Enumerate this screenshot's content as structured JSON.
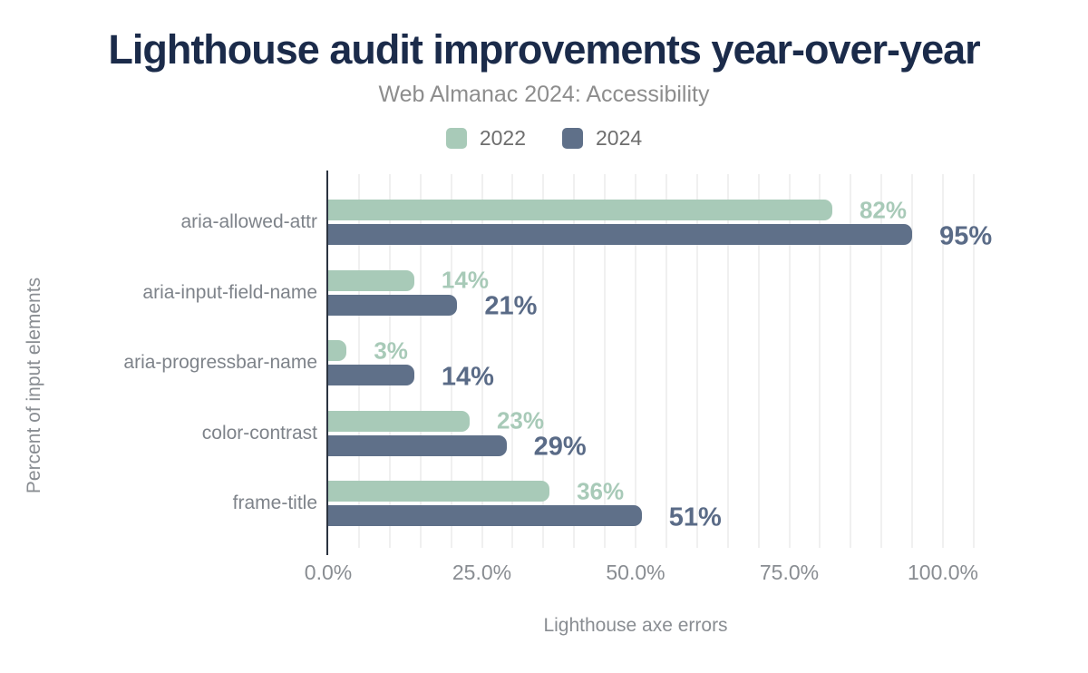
{
  "title": "Lighthouse audit improvements year-over-year",
  "subtitle": "Web Almanac 2024: Accessibility",
  "legend": [
    {
      "label": "2022",
      "color": "#a8cab8"
    },
    {
      "label": "2024",
      "color": "#5f7089"
    }
  ],
  "axes": {
    "x_label": "Lighthouse axe errors",
    "y_label": "Percent of input elements",
    "x_ticks": [
      {
        "label": "0.0%",
        "value": 0
      },
      {
        "label": "25.0%",
        "value": 25
      },
      {
        "label": "50.0%",
        "value": 50
      },
      {
        "label": "75.0%",
        "value": 75
      },
      {
        "label": "100.0%",
        "value": 100
      }
    ]
  },
  "chart_data": {
    "type": "bar",
    "orientation": "horizontal",
    "title": "Lighthouse audit improvements year-over-year",
    "subtitle": "Web Almanac 2024: Accessibility",
    "xlabel": "Lighthouse axe errors",
    "ylabel": "Percent of input elements",
    "categories": [
      "aria-allowed-attr",
      "aria-input-field-name",
      "aria-progressbar-name",
      "color-contrast",
      "frame-title"
    ],
    "series": [
      {
        "name": "2022",
        "color": "#a8cab8",
        "label_color": "#a8cab8",
        "values": [
          82,
          14,
          3,
          23,
          36
        ],
        "data_labels": [
          "82%",
          "14%",
          "3%",
          "23%",
          "36%"
        ]
      },
      {
        "name": "2024",
        "color": "#5f7089",
        "label_color": "#5a6b87",
        "values": [
          95,
          21,
          14,
          29,
          51
        ],
        "data_labels": [
          "95%",
          "21%",
          "14%",
          "29%",
          "51%"
        ]
      }
    ],
    "xlim": [
      0,
      110
    ],
    "grid": true,
    "gridline_interval": 5,
    "legend_position": "top",
    "x_tick_values": [
      0,
      25,
      50,
      75,
      100
    ],
    "x_tick_labels": [
      "0.0%",
      "25.0%",
      "50.0%",
      "75.0%",
      "100.0%"
    ]
  },
  "colors": {
    "title": "#1b2b4a",
    "subtitle": "#8d8d8d",
    "legend_text": "#6e6e6e",
    "category_text": "#7e838a",
    "tick_text": "#898d92",
    "axis_line": "#2b3340",
    "gridline": "#f0f0f0"
  }
}
